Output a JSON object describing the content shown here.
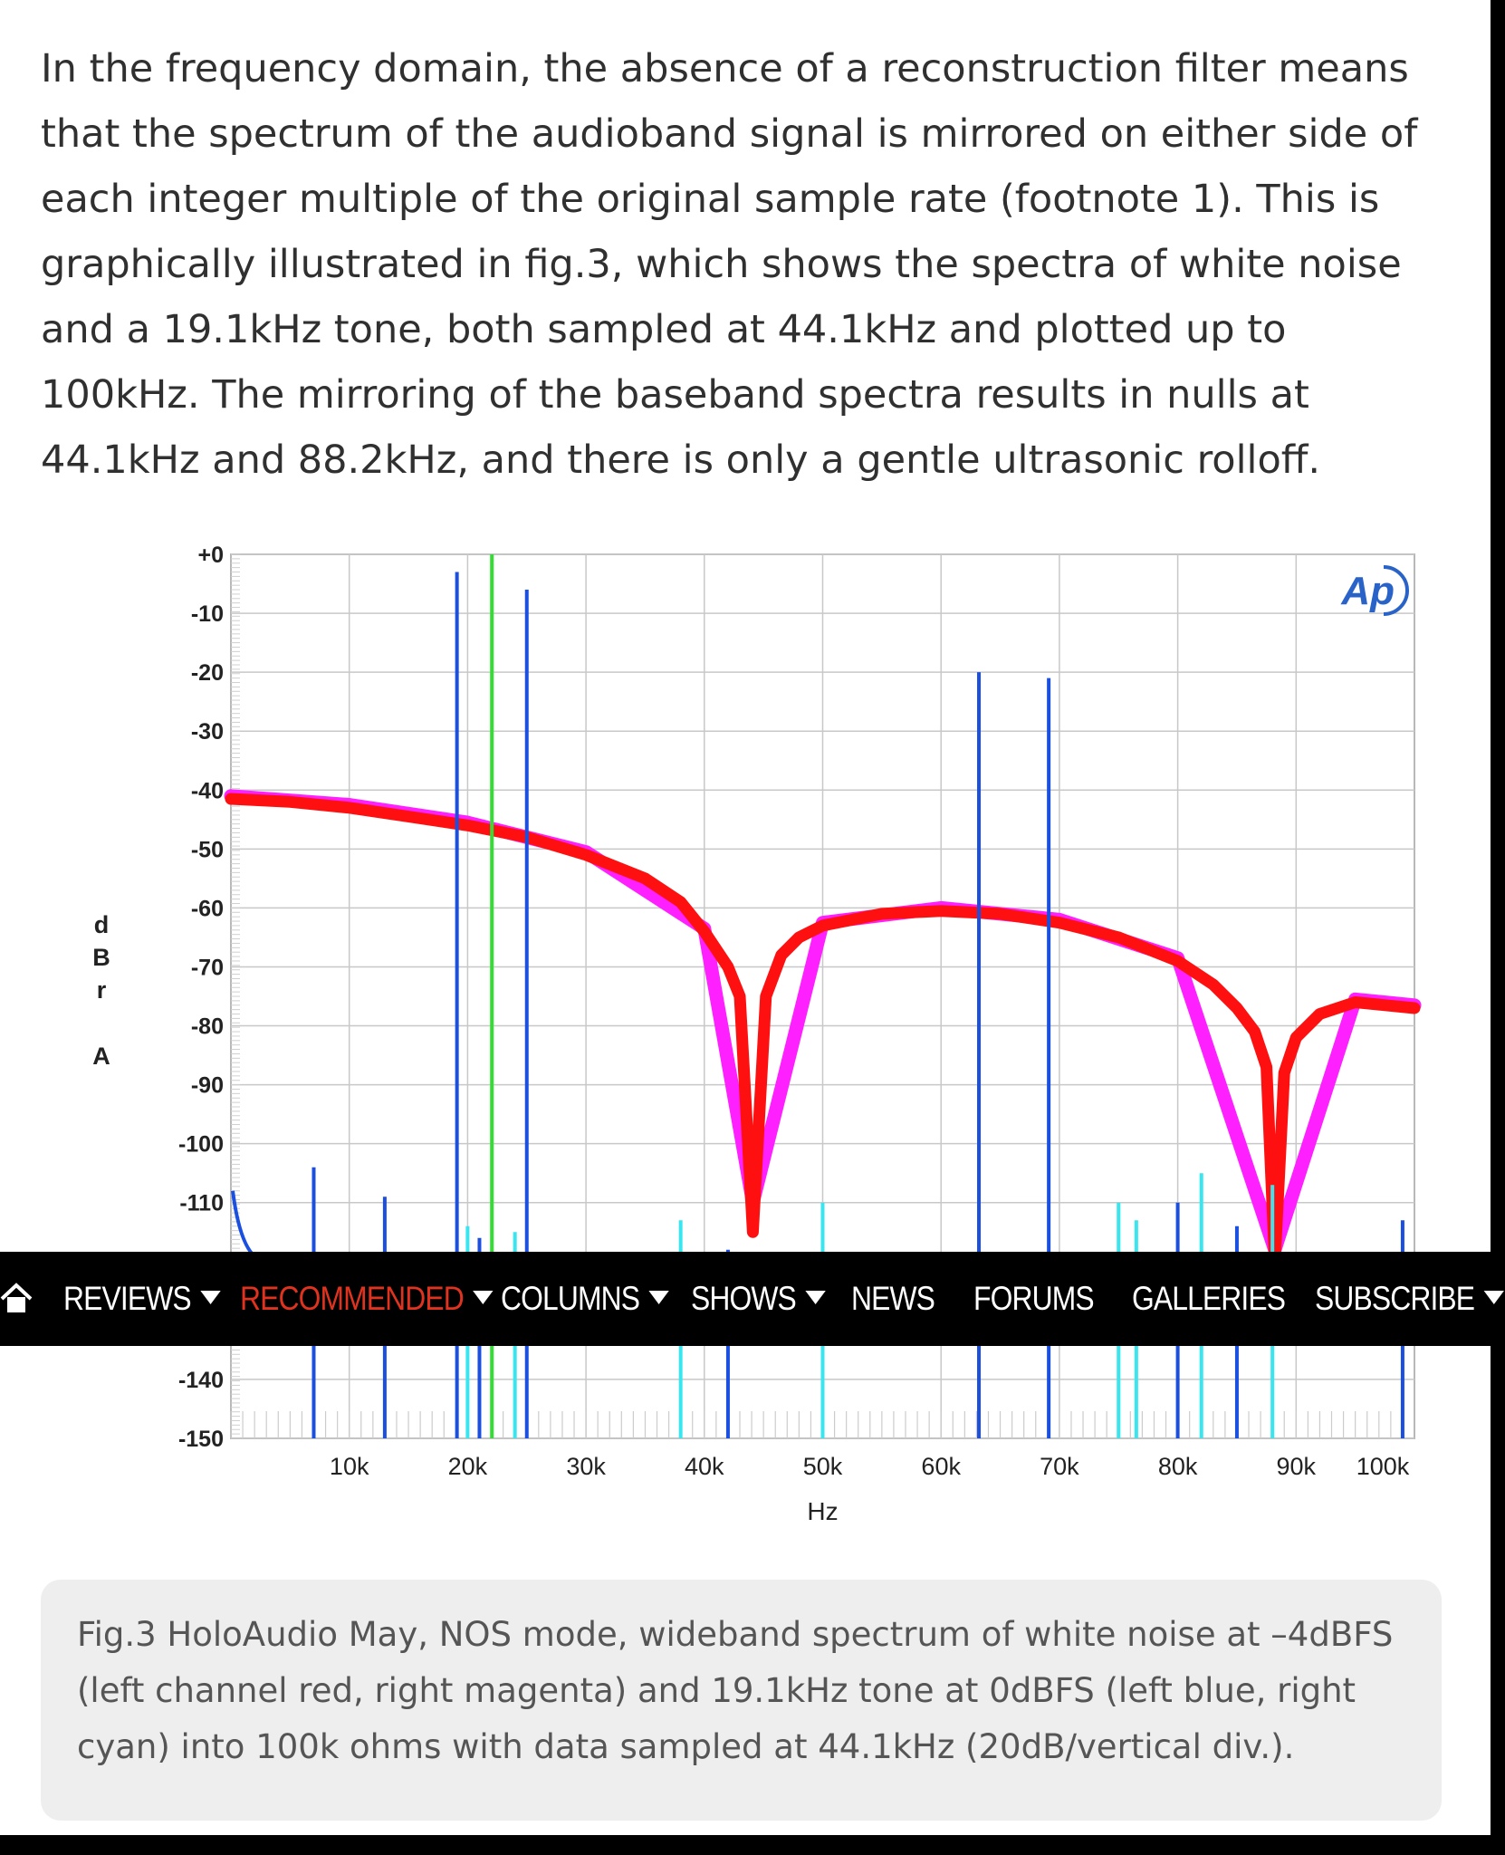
{
  "article": {
    "paragraph": "In the frequency domain, the absence of a reconstruction filter means that the spectrum of the audioband signal is mirrored on either side of each integer multiple of the original sample rate (footnote 1). This is graphically illustrated in fig.3, which shows the spectra of white noise and a 19.1kHz tone, both sampled at 44.1kHz and plotted up to 100kHz. The mirroring of the baseband spectra results in nulls at 44.1kHz and 88.2kHz, and there is only a gentle ultrasonic rolloff."
  },
  "nav": {
    "home_icon": "home-icon",
    "items": [
      {
        "label": "REVIEWS",
        "dropdown": true,
        "active": false
      },
      {
        "label": "RECOMMENDED",
        "dropdown": true,
        "active": true
      },
      {
        "label": "COLUMNS",
        "dropdown": true,
        "active": false
      },
      {
        "label": "SHOWS",
        "dropdown": true,
        "active": false
      },
      {
        "label": "NEWS",
        "dropdown": false,
        "active": false
      },
      {
        "label": "FORUMS",
        "dropdown": false,
        "active": false
      },
      {
        "label": "GALLERIES",
        "dropdown": false,
        "active": false
      },
      {
        "label": "SUBSCRIBE",
        "dropdown": true,
        "active": false
      }
    ]
  },
  "caption": {
    "text": "Fig.3 HoloAudio May, NOS mode, wideband spectrum of white noise at –4dBFS (left channel red, right magenta) and 19.1kHz tone at 0dBFS (left blue, right cyan) into 100k ohms with data sampled at 44.1kHz (20dB/vertical div.)."
  },
  "colors": {
    "nav_active": "#e0331f",
    "trace_red": "#ff1010",
    "trace_magenta": "#ff20ff",
    "trace_blue": "#1a4fe0",
    "trace_cyan": "#38e6f0",
    "trace_green": "#33dd33"
  },
  "chart_data": {
    "type": "line",
    "logo": "Ap",
    "xlabel": "Hz",
    "ylabel": "dBr A",
    "xlim": [
      0,
      100000
    ],
    "ylim": [
      -150,
      0
    ],
    "x_ticks": [
      {
        "v": 10000,
        "label": "10k"
      },
      {
        "v": 20000,
        "label": "20k"
      },
      {
        "v": 30000,
        "label": "30k"
      },
      {
        "v": 40000,
        "label": "40k"
      },
      {
        "v": 50000,
        "label": "50k"
      },
      {
        "v": 60000,
        "label": "60k"
      },
      {
        "v": 70000,
        "label": "70k"
      },
      {
        "v": 80000,
        "label": "80k"
      },
      {
        "v": 90000,
        "label": "90k"
      },
      {
        "v": 100000,
        "label": "100k"
      }
    ],
    "y_ticks": [
      {
        "v": 0,
        "label": "+0"
      },
      {
        "v": -10,
        "label": "-10"
      },
      {
        "v": -20,
        "label": "-20"
      },
      {
        "v": -30,
        "label": "-30"
      },
      {
        "v": -40,
        "label": "-40"
      },
      {
        "v": -50,
        "label": "-50"
      },
      {
        "v": -60,
        "label": "-60"
      },
      {
        "v": -70,
        "label": "-70"
      },
      {
        "v": -80,
        "label": "-80"
      },
      {
        "v": -90,
        "label": "-90"
      },
      {
        "v": -100,
        "label": "-100"
      },
      {
        "v": -110,
        "label": "-110"
      },
      {
        "v": -140,
        "label": "-140"
      },
      {
        "v": -150,
        "label": "-150"
      }
    ],
    "grid": true,
    "series": [
      {
        "color": "#ff1010",
        "x": [
          0,
          5000,
          10000,
          15000,
          20000,
          25000,
          30000,
          35000,
          38000,
          40000,
          42000,
          43000,
          44100,
          45200,
          46500,
          48000,
          50000,
          55000,
          60000,
          65000,
          70000,
          75000,
          80000,
          83000,
          85000,
          86500,
          87500,
          88200,
          89000,
          90000,
          92000,
          95000,
          100000
        ],
        "y": [
          -41.5,
          -42,
          -43,
          -44.5,
          -46,
          -48,
          -51,
          -55,
          -59,
          -64,
          -70,
          -75,
          -115,
          -75,
          -68,
          -65,
          -63,
          -61,
          -60.5,
          -61,
          -62.5,
          -65,
          -69,
          -73,
          -77,
          -81,
          -87,
          -120,
          -88,
          -82,
          -78,
          -76,
          -77
        ]
      },
      {
        "color": "#ff20ff",
        "x": [
          0,
          10000,
          20000,
          30000,
          40000,
          44100,
          50000,
          60000,
          70000,
          80000,
          88200,
          95000,
          100000
        ],
        "y": [
          -41,
          -42.5,
          -45.5,
          -50.5,
          -63.5,
          -110,
          -62.5,
          -60,
          -62,
          -68.5,
          -118,
          -75.5,
          -76.5
        ]
      },
      {
        "color": "#1a4fe0",
        "bars_x": [
          19100,
          25000,
          63200,
          69100,
          7000,
          13000,
          21000,
          42000,
          50000,
          80000,
          85000,
          99000
        ],
        "bars_y": [
          -3,
          -6,
          -20,
          -21,
          -104,
          -109,
          -116,
          -118,
          -118,
          -110,
          -114,
          -113
        ]
      },
      {
        "color": "#38e6f0",
        "bars_x": [
          20000,
          24000,
          38000,
          50000,
          75000,
          76500,
          82000,
          88000
        ],
        "bars_y": [
          -114,
          -115,
          -113,
          -110,
          -110,
          -113,
          -105,
          -107
        ]
      },
      {
        "color": "#33dd33",
        "bars_x": [
          22050
        ],
        "bars_y": [
          0
        ]
      }
    ]
  }
}
